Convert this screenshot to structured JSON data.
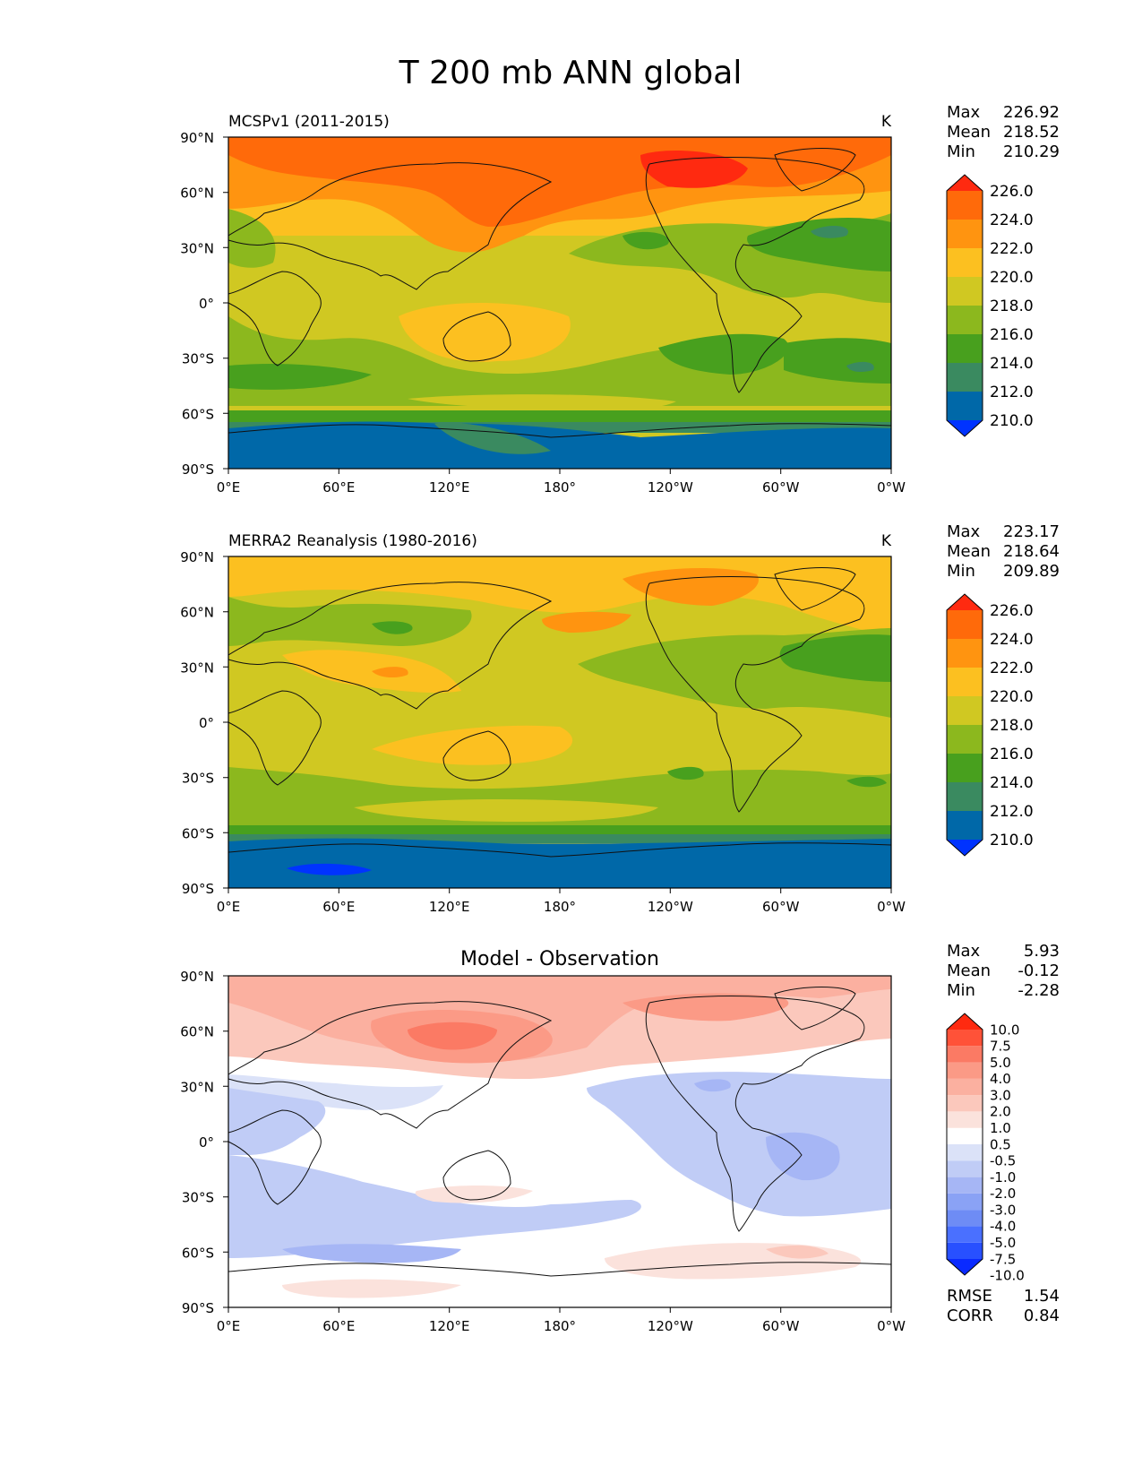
{
  "title": "T 200 mb ANN global",
  "panels": [
    {
      "left_title": "MCSPv1 (2011-2015)",
      "center_title": "",
      "units": "K",
      "stats": [
        {
          "label": "Max",
          "value": "226.92"
        },
        {
          "label": "Mean",
          "value": "218.52"
        },
        {
          "label": "Min",
          "value": "210.29"
        }
      ],
      "colorbar_labels": [
        "226.0",
        "224.0",
        "222.0",
        "220.0",
        "218.0",
        "216.0",
        "214.0",
        "212.0",
        "210.0"
      ],
      "extra_stats": []
    },
    {
      "left_title": "MERRA2 Reanalysis (1980-2016)",
      "center_title": "",
      "units": "K",
      "stats": [
        {
          "label": "Max",
          "value": "223.17"
        },
        {
          "label": "Mean",
          "value": "218.64"
        },
        {
          "label": "Min",
          "value": "209.89"
        }
      ],
      "colorbar_labels": [
        "226.0",
        "224.0",
        "222.0",
        "220.0",
        "218.0",
        "216.0",
        "214.0",
        "212.0",
        "210.0"
      ],
      "extra_stats": []
    },
    {
      "left_title": "",
      "center_title": "Model - Observation",
      "units": "",
      "stats": [
        {
          "label": "Max",
          "value": "5.93"
        },
        {
          "label": "Mean",
          "value": "-0.12"
        },
        {
          "label": "Min",
          "value": "-2.28"
        }
      ],
      "colorbar_labels": [
        "10.0",
        "7.5",
        "5.0",
        "4.0",
        "3.0",
        "2.0",
        "1.0",
        "0.5",
        "-0.5",
        "-1.0",
        "-2.0",
        "-3.0",
        "-4.0",
        "-5.0",
        "-7.5",
        "-10.0"
      ],
      "extra_stats": [
        {
          "label": "RMSE",
          "value": "1.54"
        },
        {
          "label": "CORR",
          "value": "0.84"
        }
      ]
    }
  ],
  "lat_ticks": [
    "90°N",
    "60°N",
    "30°N",
    "0°",
    "30°S",
    "60°S",
    "90°S"
  ],
  "lon_ticks": [
    "0°E",
    "60°E",
    "120°E",
    "180°",
    "120°W",
    "60°W",
    "0°W"
  ],
  "colors": {
    "field_scale": [
      "#0033ff",
      "#0068a8",
      "#3a8a60",
      "#48a01e",
      "#8cb81e",
      "#d0c822",
      "#fcc020",
      "#ff9410",
      "#ff6a0a",
      "#ff2a10"
    ],
    "diff_scale": [
      "#0a2aff",
      "#2850ff",
      "#4a70ff",
      "#6e8cf5",
      "#8aa2f5",
      "#a6b6f5",
      "#c0ccf6",
      "#dbe2f8",
      "#ffffff",
      "#fbe2dc",
      "#fbc8bc",
      "#fbb0a0",
      "#fb9a86",
      "#fb7a64",
      "#ff5238",
      "#ff2a10"
    ]
  }
}
